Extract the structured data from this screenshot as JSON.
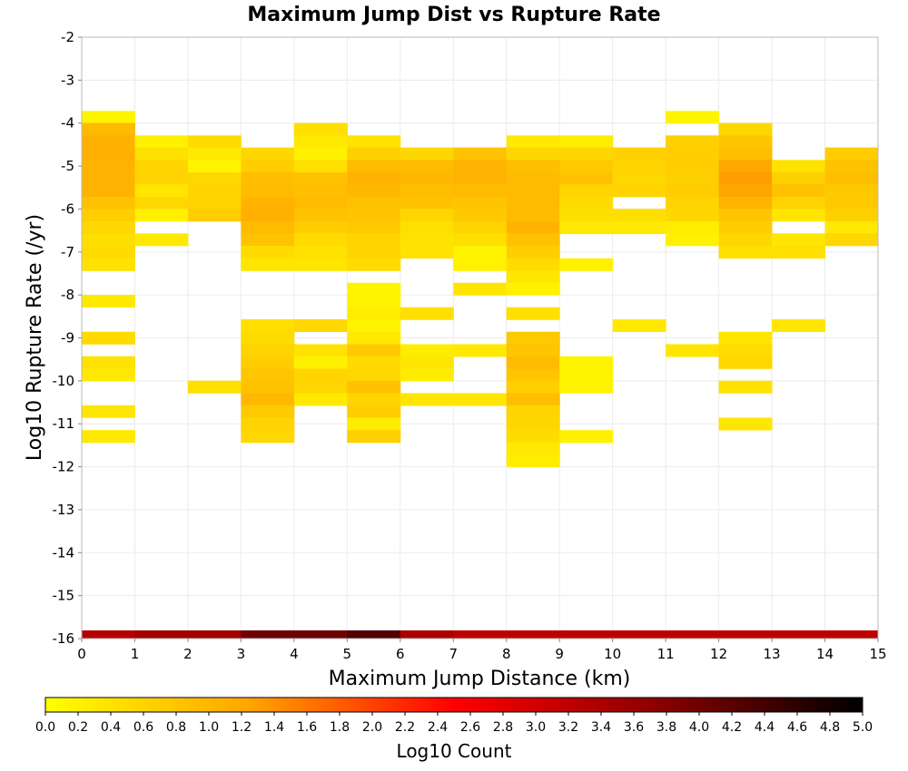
{
  "chart_data": {
    "type": "heatmap",
    "title": "Maximum Jump Dist vs Rupture Rate",
    "xlabel": "Maximum Jump Distance (km)",
    "ylabel": "Log10 Rupture Rate (/yr)",
    "xlim": [
      0,
      15
    ],
    "ylim": [
      -16,
      -2
    ],
    "x_ticks": [
      "0",
      "1",
      "2",
      "3",
      "4",
      "5",
      "6",
      "7",
      "8",
      "9",
      "10",
      "11",
      "12",
      "13",
      "14",
      "15"
    ],
    "y_ticks": [
      "-2",
      "-3",
      "-4",
      "-5",
      "-6",
      "-7",
      "-8",
      "-9",
      "-10",
      "-11",
      "-12",
      "-13",
      "-14",
      "-15",
      "-16"
    ],
    "grid": true,
    "bin_height": 0.2857,
    "colorbar": {
      "label": "Log10 Count",
      "min": 0.0,
      "max": 5.0,
      "ticks": [
        "0.0",
        "0.2",
        "0.4",
        "0.6",
        "0.8",
        "1.0",
        "1.2",
        "1.4",
        "1.6",
        "1.8",
        "2.0",
        "2.2",
        "2.4",
        "2.6",
        "2.8",
        "3.0",
        "3.2",
        "3.4",
        "3.6",
        "3.8",
        "4.0",
        "4.2",
        "4.4",
        "4.6",
        "4.8",
        "5.0"
      ],
      "colors": [
        "#ffff00",
        "#ffa500",
        "#ff0000",
        "#8b0000",
        "#000000"
      ]
    },
    "columns": [
      {
        "x": [
          0,
          1
        ],
        "cells": [
          [
            -3.86,
            0.15
          ],
          [
            -4.14,
            0.95
          ],
          [
            -4.43,
            1.1
          ],
          [
            -4.71,
            1.1
          ],
          [
            -5.0,
            1.05
          ],
          [
            -5.29,
            1.05
          ],
          [
            -5.57,
            1.05
          ],
          [
            -5.86,
            0.85
          ],
          [
            -6.14,
            0.7
          ],
          [
            -6.43,
            0.55
          ],
          [
            -6.71,
            0.45
          ],
          [
            -7.0,
            0.5
          ],
          [
            -7.29,
            0.4
          ],
          [
            -8.14,
            0.3
          ],
          [
            -9.0,
            0.5
          ],
          [
            -9.57,
            0.4
          ],
          [
            -9.86,
            0.3
          ],
          [
            -10.71,
            0.35
          ],
          [
            -11.29,
            0.3
          ]
        ]
      },
      {
        "x": [
          1,
          2
        ],
        "cells": [
          [
            -4.43,
            0.2
          ],
          [
            -4.71,
            0.45
          ],
          [
            -5.0,
            0.6
          ],
          [
            -5.29,
            0.6
          ],
          [
            -5.57,
            0.35
          ],
          [
            -5.86,
            0.55
          ],
          [
            -6.14,
            0.2
          ],
          [
            -6.71,
            0.3
          ]
        ]
      },
      {
        "x": [
          2,
          3
        ],
        "cells": [
          [
            -4.43,
            0.5
          ],
          [
            -4.71,
            0.3
          ],
          [
            -5.0,
            0.15
          ],
          [
            -5.29,
            0.55
          ],
          [
            -5.57,
            0.6
          ],
          [
            -5.86,
            0.6
          ],
          [
            -6.14,
            0.7
          ],
          [
            -10.14,
            0.45
          ]
        ]
      },
      {
        "x": [
          3,
          4
        ],
        "cells": [
          [
            -4.71,
            0.55
          ],
          [
            -5.0,
            0.7
          ],
          [
            -5.29,
            0.9
          ],
          [
            -5.57,
            0.95
          ],
          [
            -5.86,
            1.05
          ],
          [
            -6.14,
            1.1
          ],
          [
            -6.43,
            0.95
          ],
          [
            -6.71,
            0.85
          ],
          [
            -7.0,
            0.5
          ],
          [
            -7.29,
            0.35
          ],
          [
            -8.71,
            0.45
          ],
          [
            -9.0,
            0.5
          ],
          [
            -9.29,
            0.6
          ],
          [
            -9.57,
            0.7
          ],
          [
            -9.86,
            0.8
          ],
          [
            -10.14,
            0.85
          ],
          [
            -10.43,
            1.0
          ],
          [
            -10.71,
            0.75
          ],
          [
            -11.0,
            0.6
          ],
          [
            -11.29,
            0.55
          ]
        ]
      },
      {
        "x": [
          4,
          5
        ],
        "cells": [
          [
            -4.14,
            0.45
          ],
          [
            -4.43,
            0.3
          ],
          [
            -4.71,
            0.2
          ],
          [
            -5.0,
            0.45
          ],
          [
            -5.29,
            0.85
          ],
          [
            -5.57,
            0.9
          ],
          [
            -5.86,
            0.95
          ],
          [
            -6.14,
            0.85
          ],
          [
            -6.43,
            0.7
          ],
          [
            -6.71,
            0.5
          ],
          [
            -7.0,
            0.4
          ],
          [
            -7.29,
            0.35
          ],
          [
            -8.71,
            0.55
          ],
          [
            -9.29,
            0.4
          ],
          [
            -9.57,
            0.2
          ],
          [
            -9.86,
            0.6
          ],
          [
            -10.14,
            0.55
          ],
          [
            -10.43,
            0.3
          ]
        ]
      },
      {
        "x": [
          5,
          6
        ],
        "cells": [
          [
            -4.43,
            0.4
          ],
          [
            -4.71,
            0.65
          ],
          [
            -5.0,
            0.95
          ],
          [
            -5.29,
            1.05
          ],
          [
            -5.57,
            1.0
          ],
          [
            -5.86,
            0.85
          ],
          [
            -6.14,
            0.8
          ],
          [
            -6.43,
            0.75
          ],
          [
            -6.71,
            0.6
          ],
          [
            -7.0,
            0.6
          ],
          [
            -7.29,
            0.5
          ],
          [
            -7.86,
            0.15
          ],
          [
            -8.14,
            0.15
          ],
          [
            -8.43,
            0.25
          ],
          [
            -8.71,
            0.15
          ],
          [
            -9.0,
            0.3
          ],
          [
            -9.29,
            0.75
          ],
          [
            -9.57,
            0.5
          ],
          [
            -9.86,
            0.55
          ],
          [
            -10.14,
            0.85
          ],
          [
            -10.43,
            0.6
          ],
          [
            -10.71,
            0.7
          ],
          [
            -11.0,
            0.25
          ],
          [
            -11.29,
            0.65
          ]
        ]
      },
      {
        "x": [
          6,
          7
        ],
        "cells": [
          [
            -4.71,
            0.55
          ],
          [
            -5.0,
            0.95
          ],
          [
            -5.29,
            1.0
          ],
          [
            -5.57,
            0.9
          ],
          [
            -5.86,
            0.85
          ],
          [
            -6.14,
            0.55
          ],
          [
            -6.43,
            0.45
          ],
          [
            -6.71,
            0.4
          ],
          [
            -7.0,
            0.4
          ],
          [
            -8.43,
            0.45
          ],
          [
            -9.29,
            0.25
          ],
          [
            -9.57,
            0.35
          ],
          [
            -9.86,
            0.25
          ],
          [
            -10.43,
            0.35
          ]
        ]
      },
      {
        "x": [
          7,
          8
        ],
        "cells": [
          [
            -4.71,
            0.85
          ],
          [
            -5.0,
            1.05
          ],
          [
            -5.29,
            1.05
          ],
          [
            -5.57,
            0.95
          ],
          [
            -5.86,
            0.8
          ],
          [
            -6.14,
            0.75
          ],
          [
            -6.43,
            0.6
          ],
          [
            -6.71,
            0.45
          ],
          [
            -7.0,
            0.15
          ],
          [
            -7.29,
            0.2
          ],
          [
            -7.86,
            0.35
          ],
          [
            -9.29,
            0.3
          ],
          [
            -10.43,
            0.35
          ]
        ]
      },
      {
        "x": [
          8,
          9
        ],
        "cells": [
          [
            -4.43,
            0.3
          ],
          [
            -4.71,
            0.55
          ],
          [
            -5.0,
            0.9
          ],
          [
            -5.29,
            0.95
          ],
          [
            -5.57,
            0.95
          ],
          [
            -5.86,
            0.95
          ],
          [
            -6.14,
            0.95
          ],
          [
            -6.43,
            1.05
          ],
          [
            -6.71,
            0.85
          ],
          [
            -7.0,
            0.7
          ],
          [
            -7.29,
            0.5
          ],
          [
            -7.57,
            0.35
          ],
          [
            -7.86,
            0.2
          ],
          [
            -8.43,
            0.45
          ],
          [
            -9.0,
            0.75
          ],
          [
            -9.29,
            0.8
          ],
          [
            -9.57,
            0.95
          ],
          [
            -9.86,
            0.8
          ],
          [
            -10.14,
            0.65
          ],
          [
            -10.43,
            0.9
          ],
          [
            -10.71,
            0.6
          ],
          [
            -11.0,
            0.55
          ],
          [
            -11.29,
            0.5
          ],
          [
            -11.57,
            0.3
          ],
          [
            -11.86,
            0.25
          ]
        ]
      },
      {
        "x": [
          9,
          10
        ],
        "cells": [
          [
            -4.43,
            0.25
          ],
          [
            -4.71,
            0.55
          ],
          [
            -5.0,
            0.75
          ],
          [
            -5.29,
            0.85
          ],
          [
            -5.57,
            0.6
          ],
          [
            -5.86,
            0.5
          ],
          [
            -6.14,
            0.45
          ],
          [
            -6.43,
            0.3
          ],
          [
            -7.29,
            0.2
          ],
          [
            -9.57,
            0.15
          ],
          [
            -9.86,
            0.15
          ],
          [
            -10.14,
            0.15
          ],
          [
            -11.29,
            0.2
          ]
        ]
      },
      {
        "x": [
          10,
          11
        ],
        "cells": [
          [
            -4.71,
            0.65
          ],
          [
            -5.0,
            0.6
          ],
          [
            -5.29,
            0.55
          ],
          [
            -5.57,
            0.6
          ],
          [
            -6.14,
            0.45
          ],
          [
            -6.43,
            0.3
          ],
          [
            -8.71,
            0.3
          ]
        ]
      },
      {
        "x": [
          11,
          12
        ],
        "cells": [
          [
            -3.86,
            0.15
          ],
          [
            -4.43,
            0.65
          ],
          [
            -4.71,
            0.7
          ],
          [
            -5.0,
            0.7
          ],
          [
            -5.29,
            0.65
          ],
          [
            -5.57,
            0.7
          ],
          [
            -5.86,
            0.6
          ],
          [
            -6.14,
            0.55
          ],
          [
            -6.43,
            0.25
          ],
          [
            -6.71,
            0.2
          ],
          [
            -9.29,
            0.35
          ]
        ]
      },
      {
        "x": [
          12,
          13
        ],
        "cells": [
          [
            -4.14,
            0.55
          ],
          [
            -4.43,
            0.8
          ],
          [
            -4.71,
            0.9
          ],
          [
            -5.0,
            1.2
          ],
          [
            -5.29,
            1.3
          ],
          [
            -5.57,
            1.25
          ],
          [
            -5.86,
            1.05
          ],
          [
            -6.14,
            0.8
          ],
          [
            -6.43,
            0.7
          ],
          [
            -6.71,
            0.55
          ],
          [
            -7.0,
            0.45
          ],
          [
            -9.0,
            0.35
          ],
          [
            -9.29,
            0.5
          ],
          [
            -9.57,
            0.55
          ],
          [
            -10.14,
            0.4
          ],
          [
            -11.0,
            0.35
          ]
        ]
      },
      {
        "x": [
          13,
          14
        ],
        "cells": [
          [
            -5.0,
            0.4
          ],
          [
            -5.29,
            0.65
          ],
          [
            -5.57,
            0.85
          ],
          [
            -5.86,
            0.6
          ],
          [
            -6.14,
            0.35
          ],
          [
            -6.71,
            0.35
          ],
          [
            -7.0,
            0.45
          ],
          [
            -8.71,
            0.35
          ]
        ]
      },
      {
        "x": [
          14,
          15
        ],
        "cells": [
          [
            -4.71,
            0.7
          ],
          [
            -5.0,
            0.85
          ],
          [
            -5.29,
            0.9
          ],
          [
            -5.57,
            0.75
          ],
          [
            -5.86,
            0.75
          ],
          [
            -6.14,
            0.65
          ],
          [
            -6.43,
            0.3
          ],
          [
            -6.71,
            0.55
          ]
        ]
      }
    ],
    "bottom_strip": [
      {
        "x": [
          0,
          1
        ],
        "value": 3.3
      },
      {
        "x": [
          1,
          3
        ],
        "value": 3.5
      },
      {
        "x": [
          3,
          5
        ],
        "value": 4.0
      },
      {
        "x": [
          5,
          6
        ],
        "value": 4.3
      },
      {
        "x": [
          6,
          7
        ],
        "value": 3.4
      },
      {
        "x": [
          7,
          15
        ],
        "value": 3.2
      }
    ]
  }
}
